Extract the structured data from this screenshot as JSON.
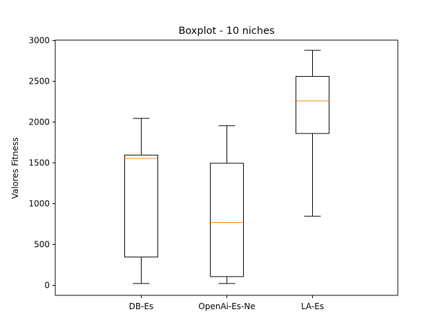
{
  "chart_data": {
    "type": "boxplot",
    "title": "Boxplot - 10 niches",
    "xlabel": "",
    "ylabel": "Valores Fitness",
    "ylim": [
      -130,
      3000
    ],
    "yticks": [
      0,
      500,
      1000,
      1500,
      2000,
      2500,
      3000
    ],
    "categories": [
      "DB-Es",
      "OpenAi-Es-Ne",
      "LA-Es"
    ],
    "boxes": [
      {
        "whisker_low": 15,
        "q1": 340,
        "median": 1550,
        "q3": 1590,
        "whisker_high": 2040
      },
      {
        "whisker_low": 15,
        "q1": 100,
        "median": 765,
        "q3": 1490,
        "whisker_high": 1950
      },
      {
        "whisker_low": 840,
        "q1": 1855,
        "median": 2255,
        "q3": 2555,
        "whisker_high": 2875
      }
    ],
    "grid": false,
    "colors": {
      "box": "#000000",
      "median": "#ff7f0e",
      "axes": "#000000"
    }
  }
}
